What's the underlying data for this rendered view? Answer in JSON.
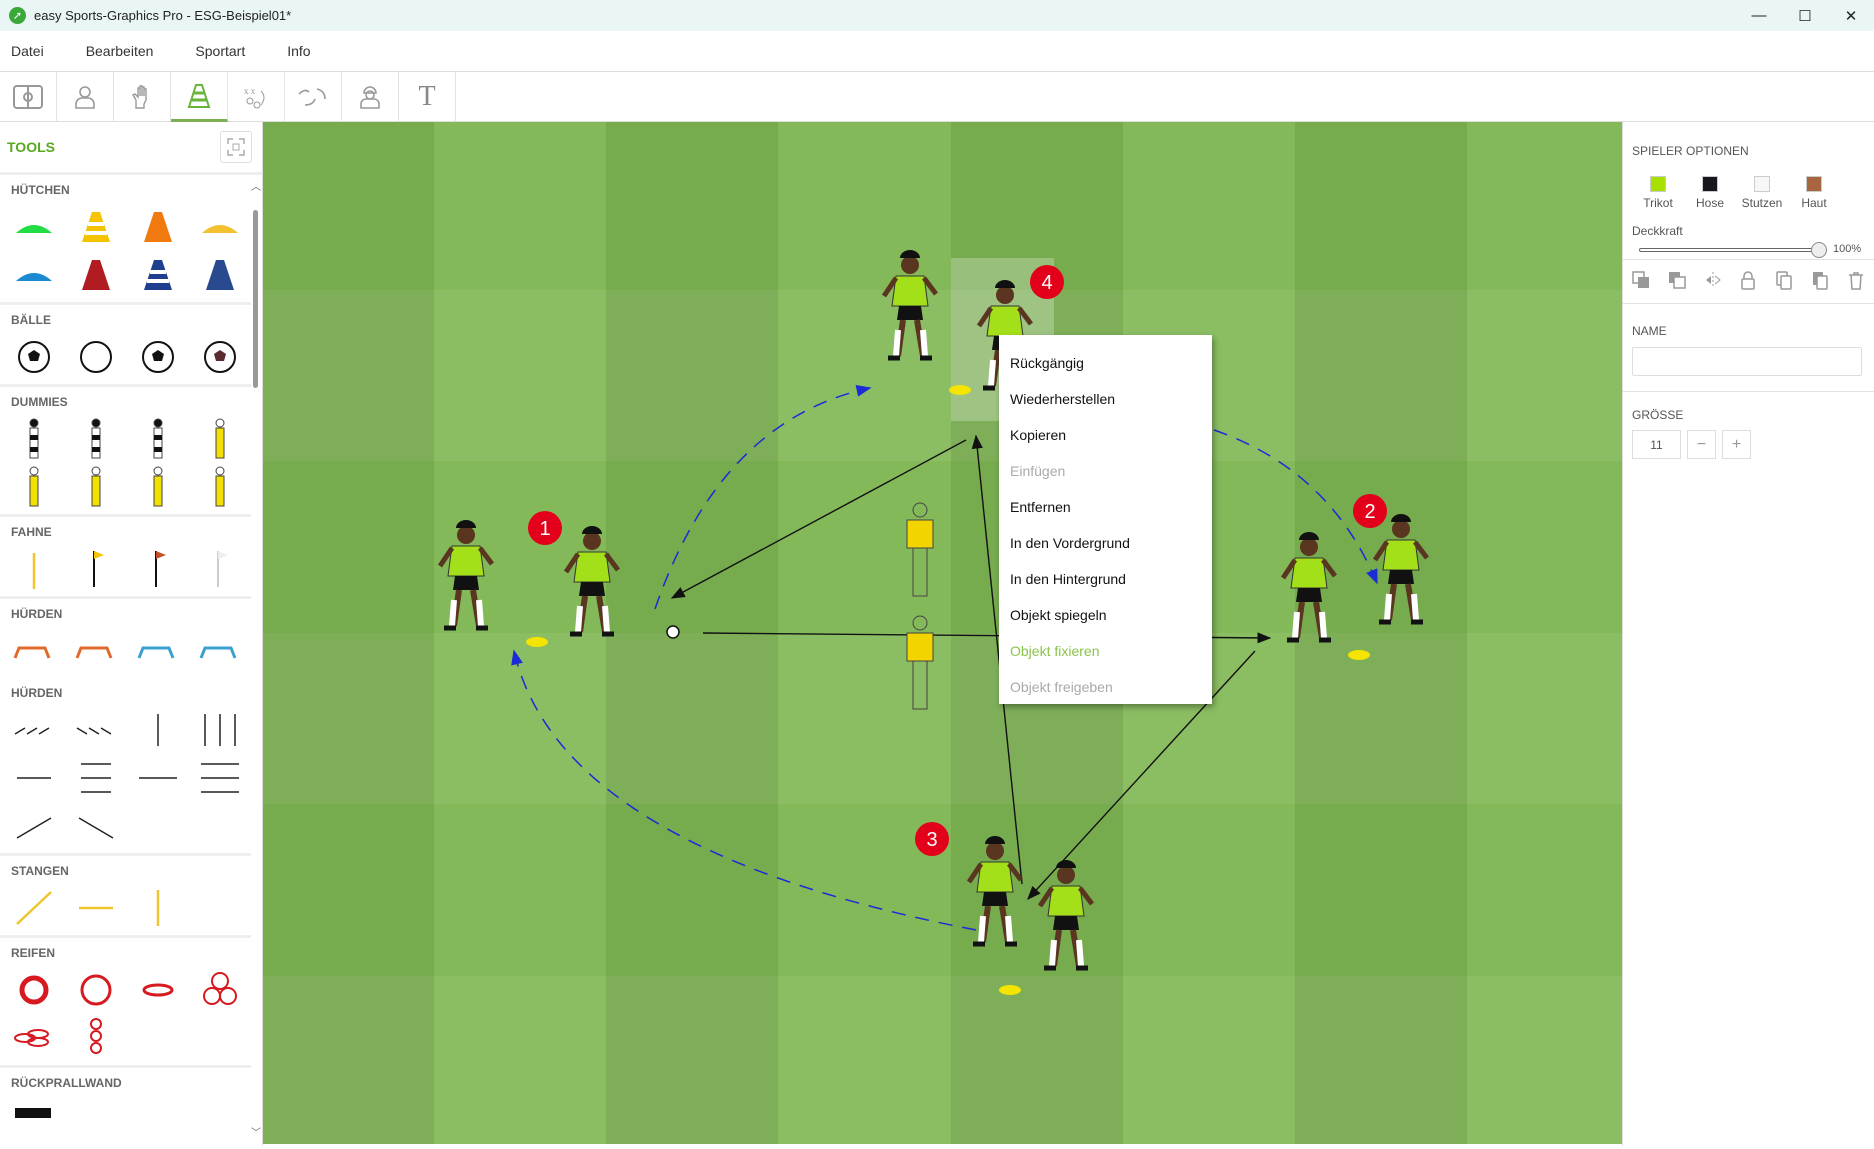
{
  "window": {
    "title": "easy Sports-Graphics Pro - ESG-Beispiel01*",
    "controls": [
      "minimize",
      "maximize",
      "close"
    ]
  },
  "menu": [
    "Datei",
    "Bearbeiten",
    "Sportart",
    "Info"
  ],
  "toolbar": {
    "active": 3,
    "tools": [
      "field-icon",
      "player-icon",
      "goalkeeper-glove-icon",
      "cone-icon",
      "tactics-icon",
      "paths-icon",
      "coach-icon",
      "text-icon"
    ],
    "text_glyph": "T"
  },
  "sidebar": {
    "title": "TOOLS",
    "sections": [
      {
        "label": "HÜTCHEN",
        "items": [
          "disc-green",
          "cone-yellow-white",
          "cone-orange",
          "disc-yellow",
          "disc-blue",
          "cone-red",
          "cone-blue-white",
          "cone-blue"
        ]
      },
      {
        "label": "BÄLLE",
        "items": [
          "ball-1",
          "ball-white",
          "ball-classic",
          "ball-dark"
        ]
      },
      {
        "label": "DUMMIES",
        "items": [
          "dummy-black-1",
          "dummy-black-2",
          "dummy-black-3",
          "dummy-yellow-1",
          "dummy-yellow-2",
          "dummy-yellow-3",
          "dummy-yellow-4",
          "dummy-yellow-5"
        ]
      },
      {
        "label": "FAHNE",
        "items": [
          "flag-yellow-pole",
          "flag-corner",
          "flag-orange",
          "flag-white"
        ]
      },
      {
        "label": "HÜRDEN",
        "items": [
          "hurdle-orange-1",
          "hurdle-orange-2",
          "hurdle-blue-1",
          "hurdle-blue-2"
        ]
      },
      {
        "label": "HÜRDEN",
        "items": [
          "hurdle-row-1",
          "hurdle-row-2",
          "hurdle-v1",
          "hurdle-v3",
          "hurdle-h1",
          "hurdle-h3",
          "hurdle-low1",
          "hurdle-low3",
          "hurdle-diag1",
          "hurdle-diag2"
        ]
      },
      {
        "label": "STANGEN",
        "items": [
          "pole-diag",
          "pole-h",
          "pole-v"
        ]
      },
      {
        "label": "REIFEN",
        "items": [
          "ring-thick",
          "ring",
          "ring-flat",
          "ring-three",
          "ring-flat-three",
          "ring-stack"
        ]
      },
      {
        "label": "RÜCKPRALLWAND",
        "items": [
          "rebound-wall"
        ]
      }
    ]
  },
  "canvas": {
    "colors": {
      "grass_dark": "#76ab4e",
      "grass_light": "#84b95a",
      "shirt": "#a4e01a",
      "badge": "#e3001b",
      "pass": "#111111",
      "run": "#1a2bd8",
      "dummy": "#f2d500",
      "cone": "#f5e400"
    },
    "badges": [
      "1",
      "2",
      "3",
      "4"
    ]
  },
  "context_menu": [
    {
      "label": "Rückgängig",
      "state": "enabled"
    },
    {
      "label": "Wiederherstellen",
      "state": "enabled"
    },
    {
      "label": "Kopieren",
      "state": "enabled"
    },
    {
      "label": "Einfügen",
      "state": "disabled"
    },
    {
      "label": "Entfernen",
      "state": "enabled"
    },
    {
      "label": "In den Vordergrund",
      "state": "enabled"
    },
    {
      "label": "In den Hintergrund",
      "state": "enabled"
    },
    {
      "label": "Objekt spiegeln",
      "state": "enabled"
    },
    {
      "label": "Objekt fixieren",
      "state": "highlight"
    },
    {
      "label": "Objekt freigeben",
      "state": "disabled"
    }
  ],
  "right_panel": {
    "title": "SPIELER OPTIONEN",
    "colors": [
      {
        "label": "Trikot",
        "color": "#a8e000"
      },
      {
        "label": "Hose",
        "color": "#15171c"
      },
      {
        "label": "Stutzen",
        "color": "#f7f7f7"
      },
      {
        "label": "Haut",
        "color": "#a8663f"
      }
    ],
    "opacity_label": "Deckkraft",
    "opacity_value": "100%",
    "opacity": 100,
    "actions": [
      "bring-forward-icon",
      "send-backward-icon",
      "mirror-icon",
      "lock-icon",
      "copy-icon",
      "duplicate-icon",
      "trash-icon"
    ],
    "name_label": "NAME",
    "name_value": "",
    "size_label": "GRÖSSE",
    "size_value": "11",
    "minus": "−",
    "plus": "+"
  }
}
